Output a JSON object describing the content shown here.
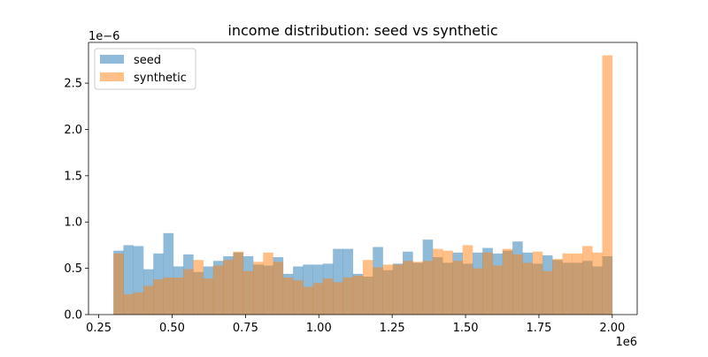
{
  "chart_data": {
    "type": "histogram",
    "title": "income distribution: seed vs synthetic",
    "xlabel": "",
    "ylabel": "",
    "x_scale_label": "1e6",
    "y_scale_label": "1e−6",
    "xlim": [
      0.215,
      2.085
    ],
    "ylim": [
      0,
      2.94
    ],
    "xticks": [
      0.25,
      0.5,
      0.75,
      1.0,
      1.25,
      1.5,
      1.75,
      2.0
    ],
    "xtick_labels": [
      "0.25",
      "0.50",
      "0.75",
      "1.00",
      "1.25",
      "1.50",
      "1.75",
      "2.00"
    ],
    "yticks": [
      0.0,
      0.5,
      1.0,
      1.5,
      2.0,
      2.5
    ],
    "ytick_labels": [
      "0.0",
      "0.5",
      "1.0",
      "1.5",
      "2.0",
      "2.5"
    ],
    "bins": {
      "start": 0.3,
      "end": 2.0,
      "count": 50
    },
    "legend_position": "upper-left",
    "grid": false,
    "series": [
      {
        "name": "seed",
        "color": "#1f77b4",
        "alpha": 0.5,
        "values": [
          0.69,
          0.75,
          0.74,
          0.49,
          0.66,
          0.88,
          0.52,
          0.65,
          0.46,
          0.52,
          0.58,
          0.63,
          0.67,
          0.63,
          0.54,
          0.53,
          0.62,
          0.44,
          0.52,
          0.54,
          0.54,
          0.55,
          0.71,
          0.71,
          0.44,
          0.41,
          0.73,
          0.48,
          0.55,
          0.68,
          0.56,
          0.81,
          0.62,
          0.56,
          0.67,
          0.55,
          0.67,
          0.72,
          0.66,
          0.69,
          0.79,
          0.67,
          0.55,
          0.64,
          0.59,
          0.56,
          0.56,
          0.58,
          0.52,
          0.63
        ]
      },
      {
        "name": "synthetic",
        "color": "#ff7f0e",
        "alpha": 0.5,
        "values": [
          0.66,
          0.22,
          0.24,
          0.31,
          0.38,
          0.4,
          0.4,
          0.49,
          0.59,
          0.39,
          0.53,
          0.59,
          0.68,
          0.47,
          0.57,
          0.67,
          0.57,
          0.4,
          0.37,
          0.3,
          0.34,
          0.39,
          0.35,
          0.4,
          0.42,
          0.59,
          0.51,
          0.54,
          0.54,
          0.58,
          0.57,
          0.58,
          0.71,
          0.69,
          0.58,
          0.75,
          0.5,
          0.67,
          0.53,
          0.71,
          0.65,
          0.56,
          0.68,
          0.47,
          0.6,
          0.66,
          0.66,
          0.74,
          0.67,
          2.8
        ]
      }
    ]
  }
}
